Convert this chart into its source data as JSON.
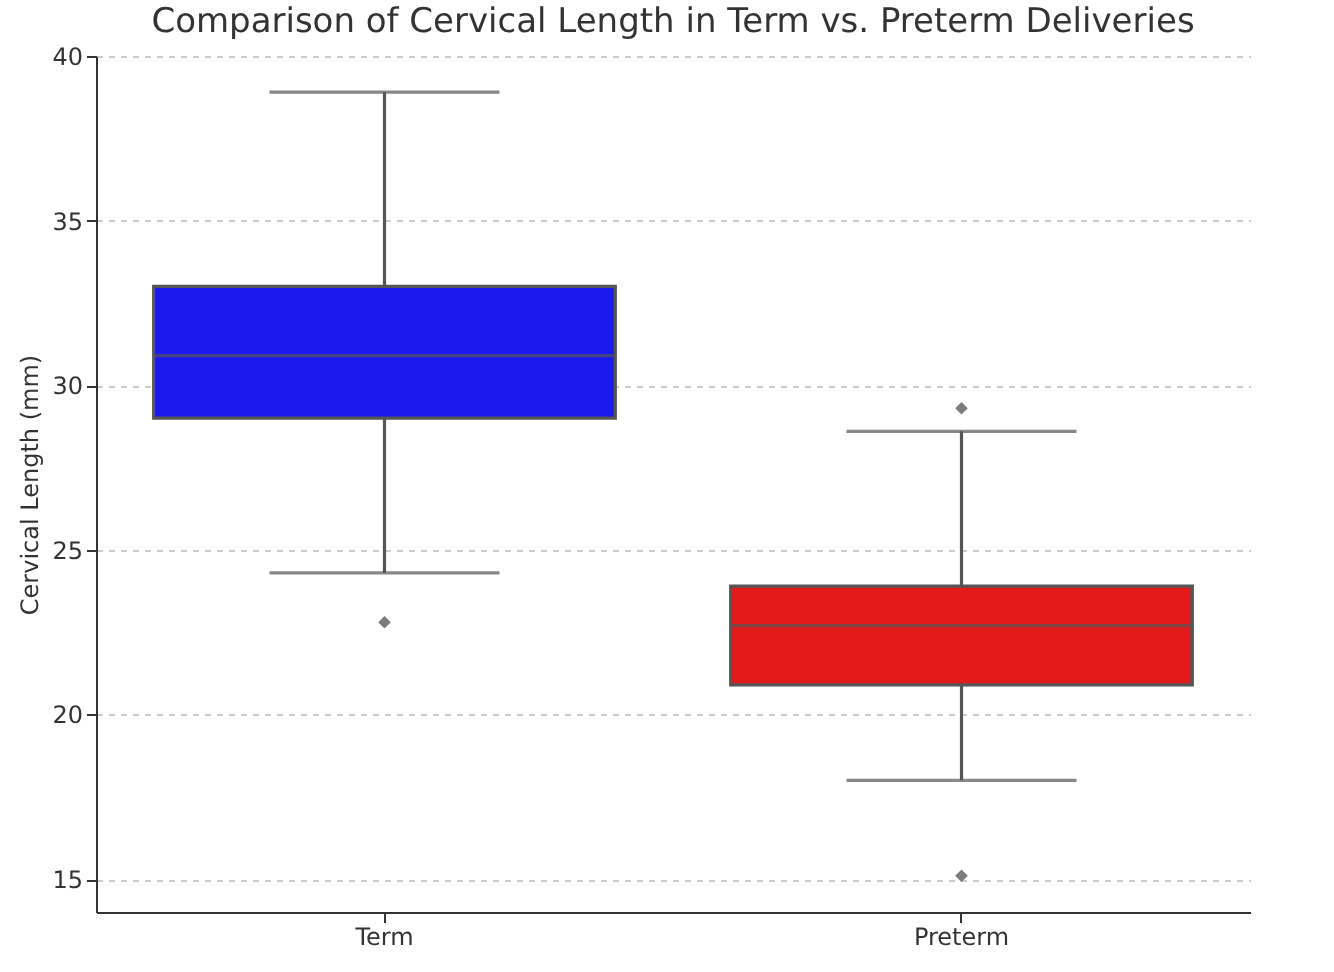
{
  "chart_data": {
    "type": "box",
    "title": "Comparison of Cervical Length in Term vs. Preterm Deliveries",
    "ylabel": "Cervical Length (mm)",
    "categories": [
      "Term",
      "Preterm"
    ],
    "boxes": [
      {
        "low": 24.3,
        "q1": 29.0,
        "median": 30.9,
        "q3": 33.0,
        "high": 38.9,
        "outliers": [
          22.8
        ]
      },
      {
        "low": 18.0,
        "q1": 20.9,
        "median": 22.7,
        "q3": 23.9,
        "high": 28.6,
        "outliers": [
          29.3,
          15.1
        ]
      }
    ],
    "colors": [
      "#1a1aee",
      "#e31a1a"
    ],
    "ylim": [
      14,
      40
    ],
    "yticks": [
      15,
      20,
      25,
      30,
      35,
      40
    ],
    "grid": "y",
    "marker": "diamond"
  }
}
